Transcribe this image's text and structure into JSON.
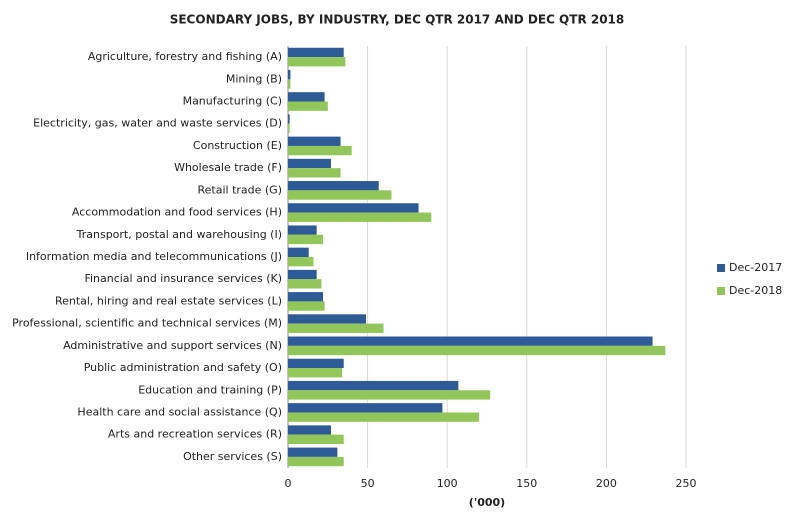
{
  "chart_data": {
    "type": "hbar",
    "title": "SECONDARY JOBS, BY INDUSTRY, DEC QTR 2017 AND DEC QTR 2018",
    "x_label": "('000)",
    "categories": [
      "Agriculture, forestry and fishing (A)",
      "Mining (B)",
      "Manufacturing (C)",
      "Electricity, gas, water and waste services (D)",
      "Construction (E)",
      "Wholesale trade (F)",
      "Retail trade (G)",
      "Accommodation and food services (H)",
      "Transport, postal and warehousing (I)",
      "Information media and telecommunications (J)",
      "Financial and insurance services (K)",
      "Rental, hiring and real estate services (L)",
      "Professional, scientific and technical services (M)",
      "Administrative and support services (N)",
      "Public administration and safety (O)",
      "Education and training (P)",
      "Health care and social assistance (Q)",
      "Arts and recreation services (R)",
      "Other services (S)"
    ],
    "series": [
      {
        "name": "Dec-2017",
        "color": "#2e5b95",
        "values": [
          35,
          1.5,
          23,
          1,
          33,
          27,
          57,
          82,
          18,
          13,
          18,
          22,
          49,
          229,
          35,
          107,
          97,
          27,
          31
        ]
      },
      {
        "name": "Dec-2018",
        "color": "#92c55a",
        "values": [
          36,
          1.5,
          25,
          1,
          40,
          33,
          65,
          90,
          22,
          16,
          21,
          23,
          60,
          237,
          34,
          127,
          120,
          35,
          35
        ]
      }
    ],
    "xlim": [
      0,
      250
    ],
    "xticks": [
      0,
      50,
      100,
      150,
      200,
      250
    ],
    "grid": true,
    "legend": "right"
  }
}
